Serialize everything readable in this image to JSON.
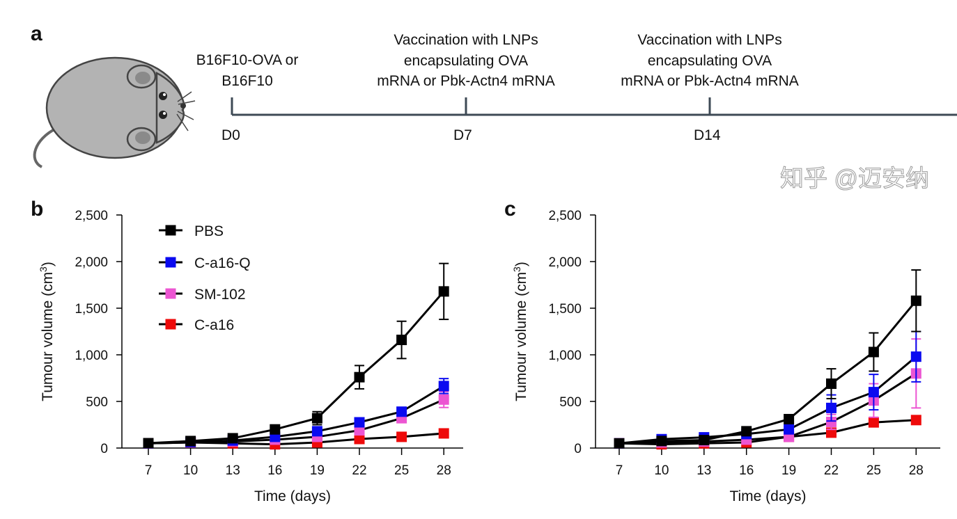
{
  "panels": {
    "a": "a",
    "b": "b",
    "c": "c"
  },
  "timeline": {
    "events": [
      {
        "day_label": "D0",
        "text": [
          "B16F10-OVA or",
          "B16F10"
        ]
      },
      {
        "day_label": "D7",
        "text": [
          "Vaccination with LNPs",
          "encapsulating OVA",
          "mRNA or Pbk-Actn4 mRNA"
        ]
      },
      {
        "day_label": "D14",
        "text": [
          "Vaccination with LNPs",
          "encapsulating OVA",
          "mRNA or Pbk-Actn4 mRNA"
        ]
      }
    ],
    "icon": "mouse-icon"
  },
  "watermark": "知乎 @迈安纳",
  "chart_data": [
    {
      "panel": "b",
      "type": "line",
      "xlabel": "Time (days)",
      "ylabel": "Tumour volume (cm",
      "ylabel_sup": "3",
      "ylabel_end": ")",
      "x": [
        7,
        10,
        13,
        16,
        19,
        22,
        25,
        28
      ],
      "xticks": [
        "7",
        "10",
        "13",
        "16",
        "19",
        "22",
        "25",
        "28"
      ],
      "ylim": [
        0,
        2500
      ],
      "yticks": [
        0,
        500,
        1000,
        1500,
        2000,
        2500
      ],
      "ytick_labels": [
        "0",
        "500",
        "1,000",
        "1,500",
        "2,000",
        "2,500"
      ],
      "grid": false,
      "legend": "top-left",
      "series": [
        {
          "name": "PBS",
          "color": "#000000",
          "values": [
            52,
            75,
            105,
            200,
            320,
            760,
            1160,
            1680
          ],
          "err": [
            0,
            0,
            0,
            0,
            70,
            125,
            200,
            300
          ]
        },
        {
          "name": "C-a16-Q",
          "color": "#0a0af0",
          "values": [
            50,
            65,
            80,
            120,
            180,
            276,
            390,
            665
          ],
          "err": [
            0,
            0,
            0,
            0,
            0,
            0,
            0,
            80
          ]
        },
        {
          "name": "SM-102",
          "color": "#ec55d2",
          "values": [
            50,
            60,
            70,
            90,
            120,
            190,
            320,
            520
          ],
          "err": [
            0,
            0,
            0,
            0,
            0,
            0,
            0,
            85
          ]
        },
        {
          "name": "C-a16",
          "color": "#ee0a0a",
          "values": [
            50,
            60,
            50,
            40,
            60,
            97,
            120,
            157
          ],
          "err": [
            0,
            0,
            0,
            0,
            0,
            0,
            0,
            0
          ]
        }
      ]
    },
    {
      "panel": "c",
      "type": "line",
      "xlabel": "Time (days)",
      "ylabel": "Tumour volume (cm",
      "ylabel_sup": "3",
      "ylabel_end": ")",
      "x": [
        7,
        10,
        13,
        16,
        19,
        22,
        25,
        28
      ],
      "xticks": [
        "7",
        "10",
        "13",
        "16",
        "19",
        "22",
        "25",
        "28"
      ],
      "ylim": [
        0,
        2500
      ],
      "yticks": [
        0,
        500,
        1000,
        1500,
        2000,
        2500
      ],
      "ytick_labels": [
        "0",
        "500",
        "1,000",
        "1,500",
        "2,000",
        "2,500"
      ],
      "grid": false,
      "series": [
        {
          "name": "PBS",
          "color": "#000000",
          "values": [
            50,
            75,
            85,
            180,
            310,
            690,
            1030,
            1580
          ],
          "err": [
            0,
            0,
            0,
            0,
            0,
            160,
            205,
            330
          ]
        },
        {
          "name": "C-a16-Q",
          "color": "#0a0af0",
          "values": [
            50,
            95,
            115,
            150,
            200,
            430,
            600,
            980
          ],
          "err": [
            0,
            0,
            0,
            0,
            0,
            140,
            190,
            270
          ]
        },
        {
          "name": "SM-102",
          "color": "#ec55d2",
          "values": [
            50,
            60,
            70,
            90,
            120,
            280,
            510,
            800
          ],
          "err": [
            0,
            0,
            0,
            0,
            0,
            80,
            180,
            370
          ]
        },
        {
          "name": "C-a16",
          "color": "#ee0a0a",
          "values": [
            50,
            40,
            50,
            60,
            120,
            165,
            275,
            300
          ],
          "err": [
            0,
            0,
            0,
            0,
            0,
            0,
            0,
            0
          ]
        }
      ]
    }
  ]
}
